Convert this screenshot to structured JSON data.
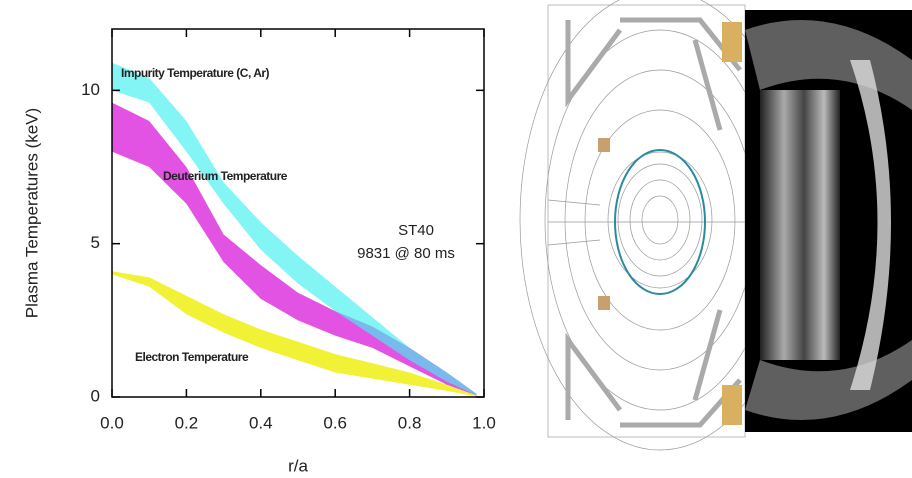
{
  "chart_data": {
    "type": "band",
    "x_label": "r/a",
    "y_label": "Plasma Temperatures (keV)",
    "x": [
      0,
      0.1,
      0.2,
      0.3,
      0.4,
      0.5,
      0.6,
      0.7,
      0.8,
      0.9,
      0.98
    ],
    "series": [
      {
        "name": "Deuterium Temperature",
        "color": "#e040e0",
        "high": [
          9.6,
          9.0,
          7.5,
          5.3,
          4.3,
          3.4,
          2.8,
          2.3,
          1.6,
          0.8,
          0.1
        ],
        "low": [
          8.0,
          7.5,
          6.3,
          4.4,
          3.2,
          2.5,
          2.0,
          1.6,
          1.0,
          0.4,
          0.05
        ]
      },
      {
        "name": "Impurity Temperature (C, Ar)",
        "color": "#40f0f0",
        "high": [
          10.9,
          10.4,
          9.0,
          7.0,
          5.7,
          4.6,
          3.6,
          2.6,
          1.6,
          0.8,
          0.1
        ],
        "low": [
          10.0,
          9.6,
          8.0,
          6.3,
          4.8,
          3.7,
          2.8,
          2.0,
          1.2,
          0.5,
          0.05
        ]
      },
      {
        "name": "Electron Temperature",
        "color": "#f0f020",
        "high": [
          4.1,
          3.9,
          3.3,
          2.7,
          2.2,
          1.8,
          1.4,
          1.1,
          0.8,
          0.4,
          0.05
        ],
        "low": [
          4.0,
          3.6,
          2.7,
          2.1,
          1.6,
          1.2,
          0.8,
          0.6,
          0.4,
          0.2,
          0.02
        ]
      }
    ],
    "annotations": [
      "ST40",
      "9831 @ 80 ms"
    ],
    "xlim": [
      0,
      1
    ],
    "ylim": [
      0,
      12
    ],
    "xticks": [
      {
        "value": 0,
        "label": "0.0"
      },
      {
        "value": 0.2,
        "label": "0.2"
      },
      {
        "value": 0.4,
        "label": "0.4"
      },
      {
        "value": 0.6,
        "label": "0.6"
      },
      {
        "value": 0.8,
        "label": "0.8"
      },
      {
        "value": 1,
        "label": "1.0"
      }
    ],
    "yticks": [
      0,
      5,
      10
    ]
  }
}
